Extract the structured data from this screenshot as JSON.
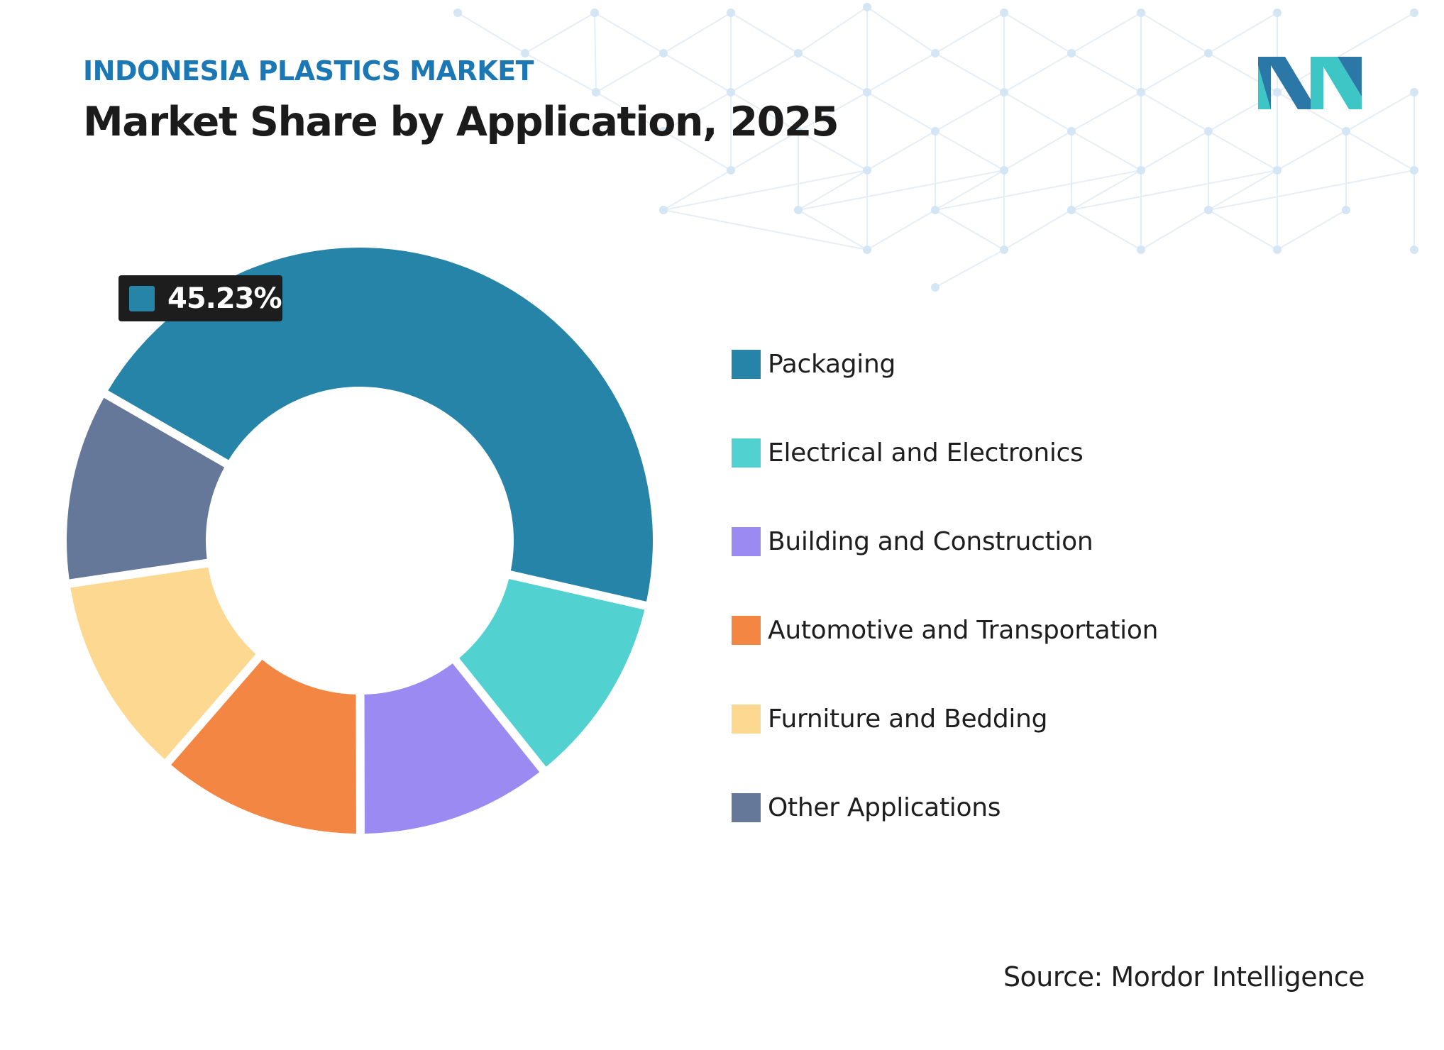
{
  "header": {
    "subtitle": "INDONESIA PLASTICS MARKET",
    "title": "Market Share by Application, 2025"
  },
  "source": "Source: Mordor Intelligence",
  "colors": {
    "accent": "#1c78b5",
    "logo_dark": "#2b78a8",
    "logo_teal": "#3ec6c6",
    "callout_bg": "#1d1d1d",
    "pattern_line": "#e6eef5",
    "pattern_dot": "#d4e6f3"
  },
  "callout": {
    "value": "45.23%",
    "color": "#2684a8"
  },
  "chart_data": {
    "type": "pie",
    "subtype": "donut",
    "title": "Market Share by Application, 2025",
    "unit": "%",
    "legend_placement": "right",
    "series": [
      {
        "name": "Packaging",
        "value": 45.23,
        "color": "#2684a8"
      },
      {
        "name": "Electrical and Electronics",
        "value": 10.7,
        "color": "#52d1d1"
      },
      {
        "name": "Building and Construction",
        "value": 10.7,
        "color": "#9b8af1"
      },
      {
        "name": "Automotive and Transportation",
        "value": 11.4,
        "color": "#f38643"
      },
      {
        "name": "Furniture and Bedding",
        "value": 11.3,
        "color": "#fdd891"
      },
      {
        "name": "Other Applications",
        "value": 10.67,
        "color": "#667899"
      }
    ]
  }
}
